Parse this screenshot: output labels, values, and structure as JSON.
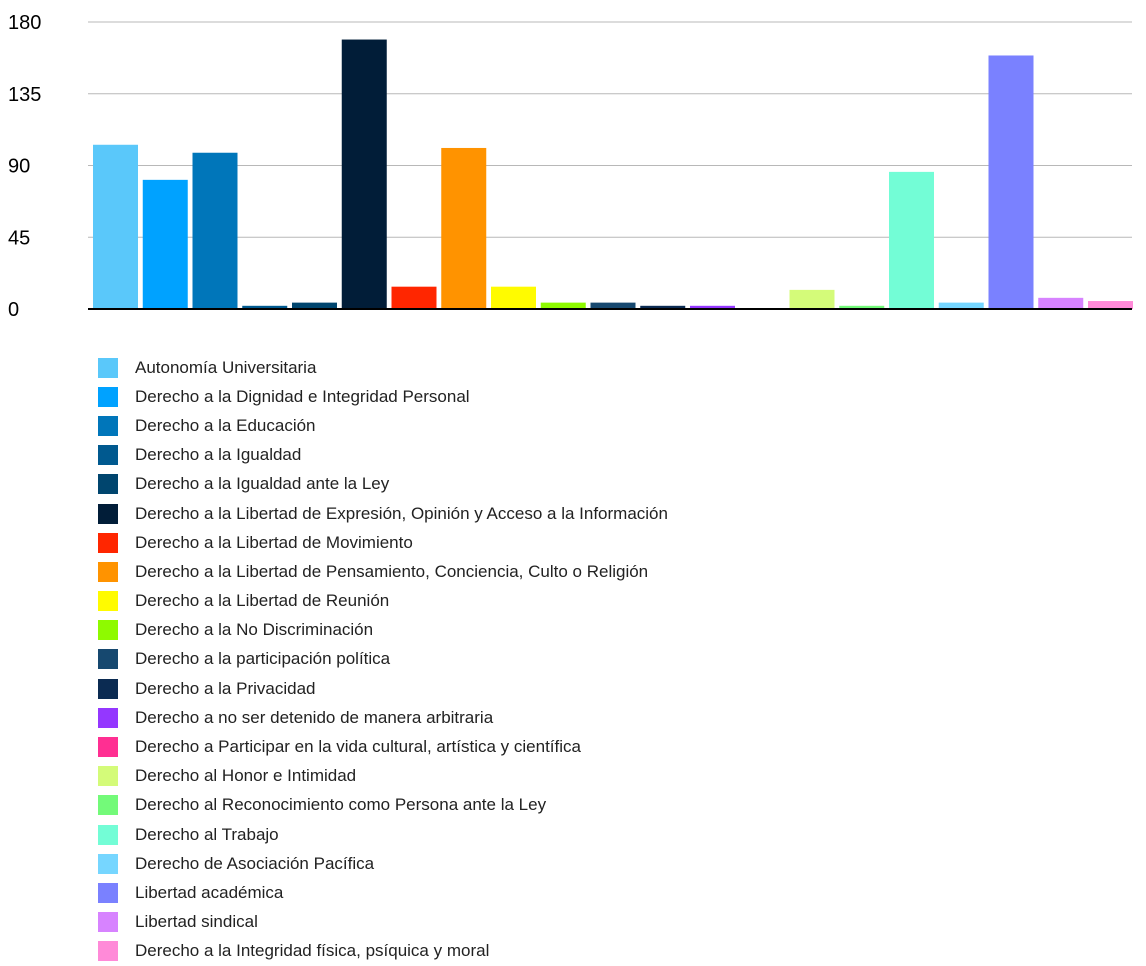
{
  "chart_data": {
    "type": "bar",
    "title": "",
    "xlabel": "",
    "ylabel": "",
    "ylim": [
      0,
      180
    ],
    "yticks": [
      0,
      45,
      90,
      135,
      180
    ],
    "grid": "horizontal",
    "legend_position": "bottom",
    "categories": [
      "Autonomía Universitaria",
      "Derecho a la Dignidad e Integridad Personal",
      "Derecho a la Educación",
      "Derecho a la Igualdad",
      "Derecho a la Igualdad ante la Ley",
      "Derecho a la Libertad de Expresión, Opinión y Acceso a la Información",
      "Derecho a la Libertad de Movimiento",
      "Derecho a la Libertad de Pensamiento, Conciencia, Culto o Religión",
      "Derecho a la Libertad de Reunión",
      "Derecho a la No Discriminación",
      "Derecho a la participación política",
      "Derecho a la Privacidad",
      "Derecho a no ser detenido de manera arbitraria",
      "Derecho a Participar en la vida cultural, artística y científica",
      "Derecho al Honor e Intimidad",
      "Derecho al Reconocimiento como Persona ante la Ley",
      "Derecho al Trabajo",
      "Derecho de Asociación Pacífica",
      "Libertad académica",
      "Libertad sindical",
      "Derecho a la Integridad física, psíquica y moral"
    ],
    "values": [
      103,
      81,
      98,
      2,
      4,
      169,
      14,
      101,
      14,
      4,
      4,
      2,
      2,
      0,
      12,
      2,
      86,
      4,
      159,
      7,
      5
    ],
    "colors": [
      "#5ac8fa",
      "#00a2ff",
      "#0076ba",
      "#00598f",
      "#00456e",
      "#011d38",
      "#ff2600",
      "#ff9300",
      "#fffb00",
      "#8efa00",
      "#16486f",
      "#0b2b52",
      "#9437ff",
      "#ff2f92",
      "#d4fb79",
      "#73fa79",
      "#73fdd6",
      "#76d6ff",
      "#7a81ff",
      "#d783ff",
      "#ff8ad8"
    ]
  }
}
